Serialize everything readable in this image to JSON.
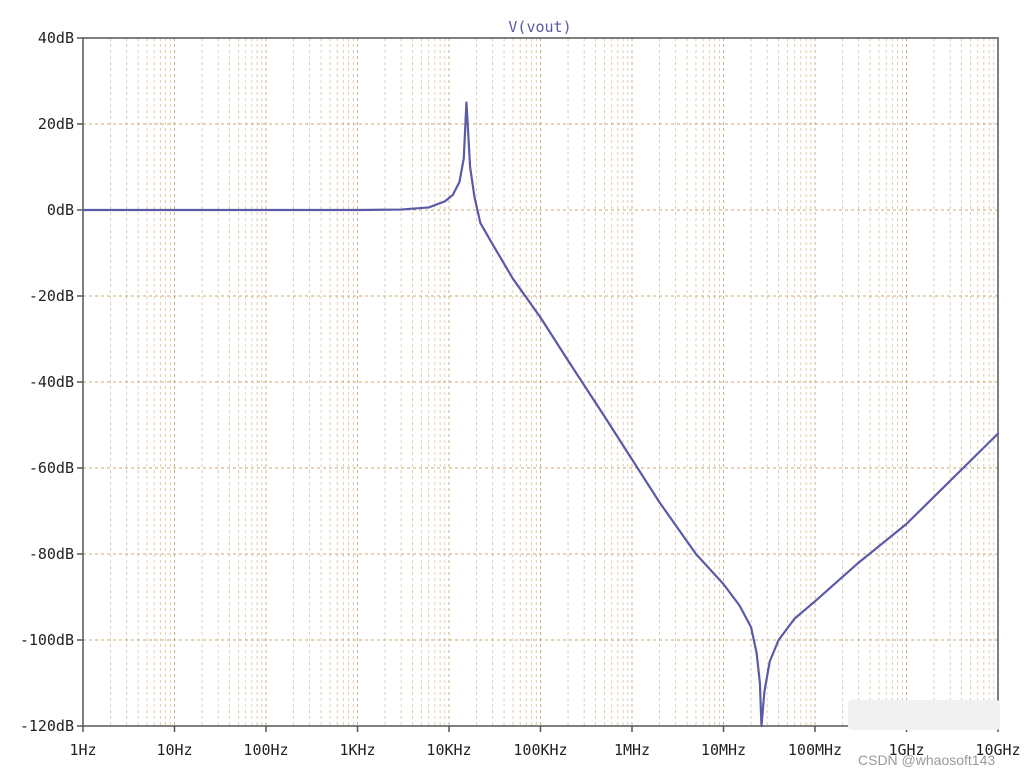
{
  "chart_data": {
    "type": "line",
    "title": "V(vout)",
    "x_scale": "log",
    "x_ticks": [
      {
        "value": 1,
        "label": "1Hz"
      },
      {
        "value": 10,
        "label": "10Hz"
      },
      {
        "value": 100,
        "label": "100Hz"
      },
      {
        "value": 1000,
        "label": "1KHz"
      },
      {
        "value": 10000,
        "label": "10KHz"
      },
      {
        "value": 100000,
        "label": "100KHz"
      },
      {
        "value": 1000000,
        "label": "1MHz"
      },
      {
        "value": 10000000,
        "label": "10MHz"
      },
      {
        "value": 100000000,
        "label": "100MHz"
      },
      {
        "value": 1000000000,
        "label": "1GHz"
      },
      {
        "value": 10000000000,
        "label": "10GHz"
      }
    ],
    "y_ticks": [
      {
        "value": 40,
        "label": "40dB"
      },
      {
        "value": 20,
        "label": "20dB"
      },
      {
        "value": 0,
        "label": "0dB"
      },
      {
        "value": -20,
        "label": "-20dB"
      },
      {
        "value": -40,
        "label": "-40dB"
      },
      {
        "value": -60,
        "label": "-60dB"
      },
      {
        "value": -80,
        "label": "-80dB"
      },
      {
        "value": -100,
        "label": "-100dB"
      },
      {
        "value": -120,
        "label": "-120dB"
      }
    ],
    "xlim": [
      1,
      10000000000
    ],
    "ylim": [
      -120,
      40
    ],
    "grid": true,
    "series": [
      {
        "name": "V(vout)",
        "color": "#5a5aa8",
        "x": [
          1,
          10,
          100,
          1000,
          3000,
          6000,
          9000,
          11000,
          13000,
          14500,
          15500,
          16000,
          17000,
          19000,
          22000,
          30000,
          50000,
          100000,
          200000,
          500000,
          1000000,
          2000000,
          5000000,
          10000000,
          15000000,
          20000000,
          23000000,
          25000000,
          26000000,
          28000000,
          32000000,
          40000000,
          60000000,
          100000000,
          300000000,
          1000000000,
          10000000000
        ],
        "y": [
          0,
          0,
          0,
          0,
          0.1,
          0.6,
          2,
          3.5,
          6.5,
          12,
          25,
          20,
          10,
          3,
          -3,
          -8,
          -16,
          -25,
          -35,
          -48,
          -58,
          -68,
          -80,
          -87,
          -92,
          -97,
          -103,
          -110,
          -120,
          -112,
          -105,
          -100,
          -95,
          -91,
          -82,
          -73,
          -52
        ]
      }
    ],
    "colors": {
      "grid": "#c8a878",
      "axis": "#555555",
      "title": "#5a5aa8"
    }
  },
  "watermark": "CSDN @whaosoft143"
}
